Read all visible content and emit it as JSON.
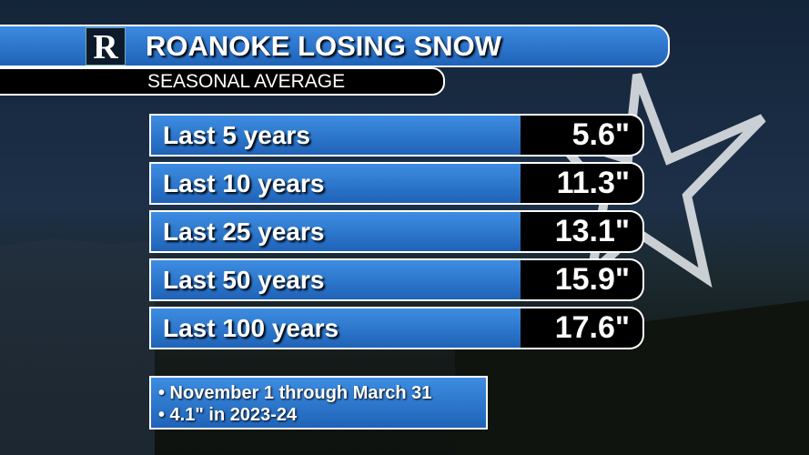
{
  "header": {
    "logo": "R",
    "title": "ROANOKE LOSING SNOW",
    "subtitle": "SEASONAL AVERAGE"
  },
  "table": {
    "rows": [
      [
        "Last 5 years",
        "5.6\""
      ],
      [
        "Last 10 years",
        "11.3\""
      ],
      [
        "Last 25 years",
        "13.1\""
      ],
      [
        "Last 50 years",
        "15.9\""
      ],
      [
        "Last 100 years",
        "17.6\""
      ]
    ]
  },
  "notes": [
    "• November 1 through March 31",
    "• 4.1\" in 2023-24"
  ]
}
